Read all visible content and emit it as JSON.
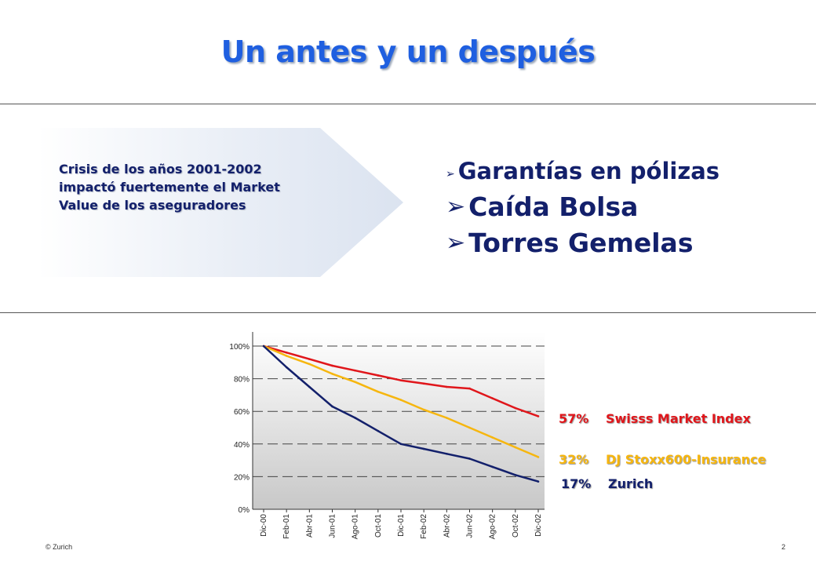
{
  "slide": {
    "title": "Un antes y un después",
    "arrow_text": [
      "Crisis de los años 2001-2002",
      "impactó fuertemente el Market",
      "Value de los aseguradores"
    ],
    "bullets": [
      "Garantías en pólizas",
      "Caída Bolsa",
      "Torres Gemelas"
    ],
    "bullet_marker": "➢",
    "footer_left": "© Zurich",
    "page_number": "2"
  },
  "legend": [
    {
      "pct": "57%",
      "label": "Swisss Market Index",
      "color": "#e0161b"
    },
    {
      "pct": "32%",
      "label": "DJ Stoxx600-Insurance",
      "color": "#f6b60f"
    },
    {
      "pct": "17%",
      "label": "Zurich",
      "color": "#13206b"
    }
  ],
  "chart_data": {
    "type": "line",
    "categories": [
      "Dic-00",
      "Feb-01",
      "Abr-01",
      "Jun-01",
      "Ago-01",
      "Oct-01",
      "Dic-01",
      "Feb-02",
      "Abr-02",
      "Jun-02",
      "Ago-02",
      "Oct-02",
      "Dic-02"
    ],
    "y_ticks": [
      "0%",
      "20%",
      "40%",
      "60%",
      "80%",
      "100%"
    ],
    "ylim": [
      0,
      100
    ],
    "grid": true,
    "series": [
      {
        "name": "Swisss Market Index",
        "color": "#e0161b",
        "values": [
          100,
          96,
          92,
          88,
          85,
          82,
          79,
          77,
          75,
          74,
          68,
          62,
          57
        ]
      },
      {
        "name": "DJ Stoxx600-Insurance",
        "color": "#f6b60f",
        "values": [
          100,
          94,
          89,
          83,
          78,
          72,
          67,
          61,
          56,
          50,
          44,
          38,
          32
        ]
      },
      {
        "name": "Zurich",
        "color": "#13206b",
        "values": [
          100,
          87,
          75,
          63,
          56,
          48,
          40,
          37,
          34,
          31,
          26,
          21,
          17
        ]
      }
    ]
  }
}
